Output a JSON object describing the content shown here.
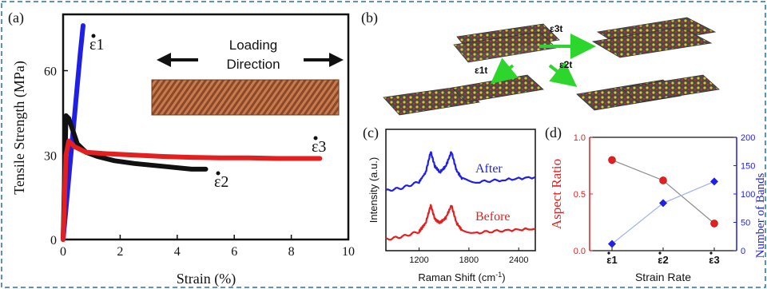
{
  "figure": {
    "panel_labels": [
      "(a)",
      "(b)",
      "(c)",
      "(d)"
    ],
    "colors": {
      "border": "#2a6db5",
      "red": "#e41f1f",
      "black": "#111111",
      "blue": "#1f1fe8",
      "green": "#2dd62d",
      "gray": "#8a8a8a",
      "light_blue": "#9db4f0"
    }
  },
  "panel_a": {
    "inset_text": [
      "Loading",
      "Direction"
    ],
    "annotations": {
      "e1": "ε1",
      "e2": "ε2",
      "e3": "ε3"
    }
  },
  "panel_b": {
    "rate_labels": {
      "e3t": "ε3t",
      "e1t": "ε1t",
      "e2t": "ε2t"
    }
  },
  "panel_c": {
    "curve_labels": {
      "after": "After",
      "before": "Before"
    }
  },
  "chart_data": [
    {
      "type": "line",
      "panel": "a",
      "xlabel": "Strain (%)",
      "ylabel": "Tensile Strength (MPa)",
      "xlim": [
        0,
        10
      ],
      "ylim": [
        0,
        80
      ],
      "xticks": [
        0,
        2,
        4,
        6,
        8,
        10
      ],
      "yticks": [
        0,
        30,
        60
      ],
      "series": [
        {
          "name": "ε1",
          "color": "#1f1fe8",
          "x": [
            0,
            0.1,
            0.2,
            0.3,
            0.4,
            0.5,
            0.6,
            0.7
          ],
          "y": [
            0,
            11,
            22,
            33,
            44,
            55,
            66,
            76
          ]
        },
        {
          "name": "ε2",
          "color": "#111111",
          "x": [
            0,
            0.1,
            0.2,
            0.3,
            0.5,
            0.8,
            1.2,
            1.8,
            2.5,
            3.5,
            4.5,
            5.0
          ],
          "y": [
            0,
            44,
            43,
            40,
            34,
            31,
            29.5,
            28,
            27,
            26,
            25,
            25
          ]
        },
        {
          "name": "ε3",
          "color": "#e41f1f",
          "x": [
            0,
            0.1,
            0.2,
            0.4,
            0.8,
            1.5,
            2.5,
            3.5,
            4.5,
            5.5,
            6.5,
            7.5,
            8.5,
            9.0
          ],
          "y": [
            0,
            30,
            35,
            33,
            31,
            30.5,
            30,
            29.5,
            29.2,
            29,
            29,
            28.8,
            28.8,
            28.8
          ]
        }
      ]
    },
    {
      "type": "line",
      "panel": "c",
      "xlabel": "Raman Shift (cm-1)",
      "ylabel": "Intensity (a.u.)",
      "xlim": [
        800,
        2600
      ],
      "xticks": [
        1200,
        1800,
        2400
      ],
      "series": [
        {
          "name": "After",
          "color": "#1f1fe8",
          "x": [
            800,
            1000,
            1200,
            1280,
            1340,
            1390,
            1450,
            1520,
            1590,
            1650,
            1720,
            1900,
            2200,
            2600
          ],
          "y": [
            0.55,
            0.58,
            0.64,
            0.74,
            0.95,
            0.8,
            0.74,
            0.8,
            0.95,
            0.76,
            0.67,
            0.64,
            0.66,
            0.69
          ]
        },
        {
          "name": "Before",
          "color": "#e41f1f",
          "x": [
            800,
            1000,
            1200,
            1280,
            1340,
            1390,
            1450,
            1520,
            1590,
            1650,
            1720,
            1900,
            2200,
            2600
          ],
          "y": [
            0.05,
            0.08,
            0.13,
            0.22,
            0.4,
            0.26,
            0.22,
            0.27,
            0.4,
            0.22,
            0.14,
            0.12,
            0.14,
            0.16
          ]
        }
      ]
    },
    {
      "type": "scatter",
      "panel": "d",
      "xlabel": "Strain Rate",
      "categories": [
        "ε1",
        "ε2",
        "ε3"
      ],
      "left_axis": {
        "label": "Aspect Ratio",
        "ylim": [
          0,
          1.0
        ],
        "ticks": [
          0.0,
          0.5,
          1.0
        ],
        "tick_labels": [
          "0.0",
          "0.5",
          "1.0"
        ]
      },
      "right_axis": {
        "label": "Number of Bands",
        "ylim": [
          0,
          200
        ],
        "ticks": [
          0,
          50,
          100,
          150,
          200
        ]
      },
      "series": [
        {
          "name": "Aspect Ratio",
          "axis": "left",
          "color": "#e41f1f",
          "marker": "circle",
          "values": [
            0.8,
            0.62,
            0.24
          ]
        },
        {
          "name": "Number of Bands",
          "axis": "right",
          "color": "#1f1fe8",
          "marker": "diamond",
          "values": [
            12,
            84,
            122
          ]
        }
      ]
    }
  ]
}
